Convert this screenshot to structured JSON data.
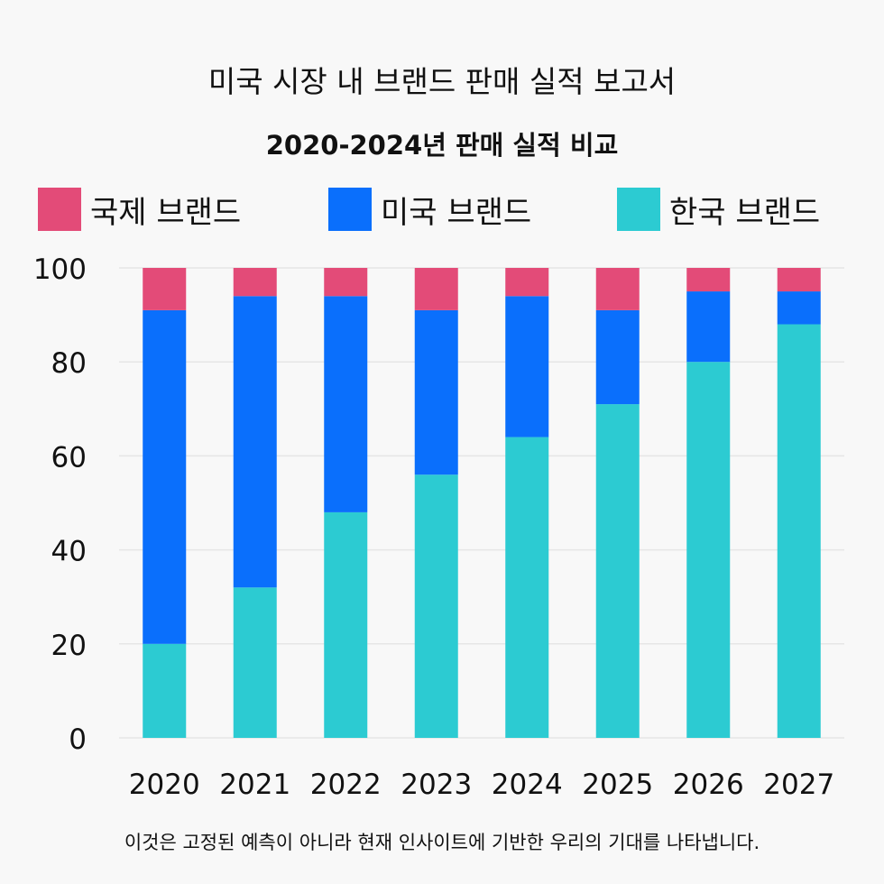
{
  "chart_data": {
    "type": "bar",
    "stacked": true,
    "title": "미국 시장 내 브랜드 판매 실적 보고서",
    "subtitle": "2020-2024년 판매 실적 비교",
    "categories": [
      "2020",
      "2021",
      "2022",
      "2023",
      "2024",
      "2025",
      "2026",
      "2027"
    ],
    "series": [
      {
        "name": "한국 브랜드",
        "color": "#2ccbd2",
        "values": [
          20,
          32,
          48,
          56,
          64,
          71,
          80,
          88
        ]
      },
      {
        "name": "미국 브랜드",
        "color": "#0a6ffc",
        "values": [
          71,
          62,
          46,
          35,
          30,
          20,
          15,
          7
        ]
      },
      {
        "name": "국제 브랜드",
        "color": "#e34b78",
        "values": [
          9,
          6,
          6,
          9,
          6,
          9,
          5,
          5
        ]
      }
    ],
    "legend_order": [
      "국제 브랜드",
      "미국 브랜드",
      "한국 브랜드"
    ],
    "legend_position": "top",
    "ylim": [
      0,
      100
    ],
    "yticks": [
      "0",
      "20",
      "40",
      "60",
      "80",
      "100"
    ],
    "grid": true,
    "xlabel": "",
    "ylabel": "",
    "footnote": "이것은 고정된 예측이 아니라 현재 인사이트에 기반한 우리의 기대를 나타냅니다."
  }
}
